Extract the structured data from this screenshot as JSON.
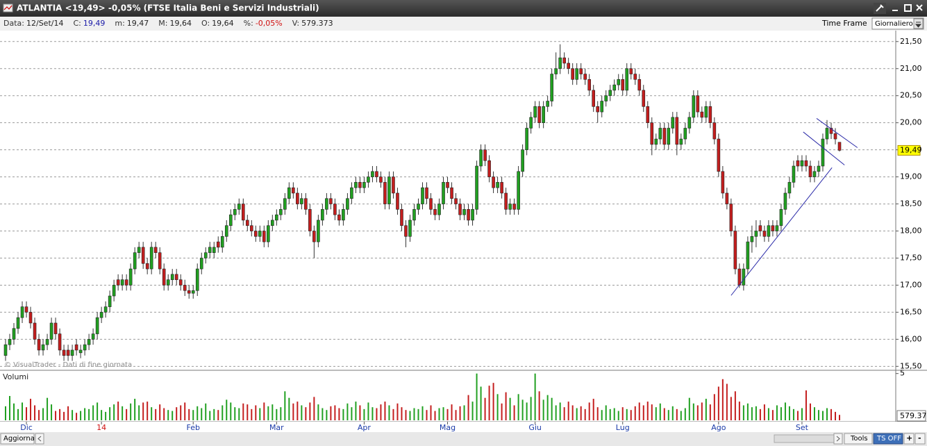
{
  "window": {
    "title": "ATLANTIA <19,49> -0,05%  (FTSE Italia Beni e Servizi Industriali)",
    "info": [
      {
        "label": "Data:",
        "value": "12/Set/14",
        "color": "#222222"
      },
      {
        "label": "C:",
        "value": "19,49",
        "color": "#1a1aa8"
      },
      {
        "label": "m:",
        "value": "19,47",
        "color": "#222222"
      },
      {
        "label": "M:",
        "value": "19,64",
        "color": "#222222"
      },
      {
        "label": "O:",
        "value": "19,64",
        "color": "#222222"
      },
      {
        "label": "%:",
        "value": "-0,05%",
        "color": "#d01010"
      },
      {
        "label": "V:",
        "value": "579.373",
        "color": "#222222"
      }
    ],
    "time_frame_label": "Time Frame",
    "time_frame": "Giornaliero",
    "buttons": {
      "refresh": "Aggiorna",
      "tools": "Tools",
      "ts": "TS OFF",
      "plus": "+",
      "minus": "-"
    }
  },
  "chart_data": {
    "type": "candlestick",
    "watermark": "© VisualTrader - Dati di fine giornata",
    "categories": [
      null,
      null,
      null,
      null,
      null,
      "Dic",
      null,
      null,
      null,
      null,
      null,
      null,
      null,
      null,
      null,
      null,
      null,
      null,
      null,
      null,
      null,
      null,
      null,
      "14",
      null,
      null,
      null,
      null,
      null,
      null,
      null,
      null,
      null,
      null,
      null,
      null,
      null,
      null,
      null,
      null,
      null,
      null,
      null,
      null,
      null,
      "Feb",
      null,
      null,
      null,
      null,
      null,
      null,
      null,
      null,
      null,
      null,
      null,
      null,
      null,
      null,
      null,
      null,
      null,
      null,
      null,
      "Mar",
      null,
      null,
      null,
      null,
      null,
      null,
      null,
      null,
      null,
      null,
      null,
      null,
      null,
      null,
      null,
      null,
      null,
      null,
      null,
      null,
      "Apr",
      null,
      null,
      null,
      null,
      null,
      null,
      null,
      null,
      null,
      null,
      null,
      null,
      null,
      null,
      null,
      null,
      null,
      null,
      null,
      "Mag",
      null,
      null,
      null,
      null,
      null,
      null,
      null,
      null,
      null,
      null,
      null,
      null,
      null,
      null,
      null,
      null,
      null,
      null,
      null,
      null,
      "Giu",
      null,
      null,
      null,
      null,
      null,
      null,
      null,
      null,
      null,
      null,
      null,
      null,
      null,
      null,
      null,
      null,
      null,
      null,
      null,
      null,
      "Lug",
      null,
      null,
      null,
      null,
      null,
      null,
      null,
      null,
      null,
      null,
      null,
      null,
      null,
      null,
      null,
      null,
      null,
      null,
      null,
      null,
      null,
      null,
      "Ago",
      null,
      null,
      null,
      null,
      null,
      null,
      null,
      null,
      null,
      null,
      null,
      null,
      null,
      null,
      null,
      null,
      null,
      null,
      null,
      "Set",
      null,
      null,
      null,
      null,
      null,
      null,
      null,
      null,
      null
    ],
    "open": [
      15.7,
      15.9,
      16.0,
      16.2,
      16.4,
      16.6,
      16.5,
      16.3,
      16.0,
      15.8,
      15.9,
      16.0,
      16.3,
      16.1,
      15.8,
      15.8,
      15.7,
      15.9,
      15.75,
      15.8,
      15.9,
      16.0,
      16.1,
      16.4,
      16.5,
      16.6,
      16.8,
      17.1,
      17.0,
      17.1,
      17.0,
      17.3,
      17.6,
      17.7,
      17.4,
      17.3,
      17.7,
      17.6,
      17.3,
      17.0,
      17.1,
      17.2,
      17.1,
      17.0,
      16.9,
      16.85,
      16.9,
      17.3,
      17.5,
      17.6,
      17.6,
      17.8,
      17.7,
      17.9,
      18.1,
      18.3,
      18.4,
      18.5,
      18.2,
      18.1,
      18.0,
      17.9,
      18.0,
      17.8,
      18.1,
      18.2,
      18.3,
      18.4,
      18.6,
      18.8,
      18.7,
      18.5,
      18.6,
      18.4,
      18.0,
      17.8,
      18.2,
      18.4,
      18.6,
      18.5,
      18.3,
      18.2,
      18.4,
      18.6,
      18.8,
      18.9,
      18.8,
      18.9,
      19.0,
      19.1,
      19.0,
      18.9,
      18.5,
      19.0,
      18.7,
      18.4,
      18.1,
      17.9,
      18.2,
      18.4,
      18.5,
      18.8,
      18.6,
      18.4,
      18.3,
      18.5,
      18.9,
      18.8,
      18.6,
      18.5,
      18.3,
      18.4,
      18.2,
      18.4,
      19.2,
      19.5,
      19.3,
      19.0,
      18.8,
      18.9,
      18.7,
      18.4,
      18.5,
      18.4,
      19.1,
      19.5,
      19.9,
      20.1,
      20.3,
      20.0,
      20.3,
      20.4,
      20.9,
      21.0,
      21.2,
      21.1,
      21.0,
      20.8,
      21.0,
      20.9,
      20.8,
      20.6,
      20.3,
      20.2,
      20.4,
      20.5,
      20.6,
      20.7,
      20.8,
      20.6,
      21.0,
      20.9,
      20.8,
      20.6,
      20.3,
      20.0,
      19.6,
      19.7,
      19.9,
      19.6,
      19.9,
      20.1,
      19.6,
      19.7,
      19.9,
      20.1,
      20.5,
      20.2,
      20.1,
      20.3,
      20.0,
      19.7,
      19.1,
      18.7,
      18.5,
      18.0,
      17.3,
      17.0,
      17.3,
      17.8,
      17.9,
      18.1,
      18.0,
      17.9,
      18.1,
      18.0,
      18.1,
      18.4,
      18.7,
      18.9,
      19.3,
      19.2,
      19.3,
      19.2,
      19.0,
      19.1,
      19.2,
      19.7,
      19.9,
      19.8,
      19.64
    ],
    "high": [
      16.0,
      16.1,
      16.3,
      16.5,
      16.7,
      16.7,
      16.6,
      16.4,
      16.1,
      16.0,
      16.1,
      16.4,
      16.4,
      16.2,
      15.9,
      15.9,
      15.9,
      16.0,
      15.9,
      16.0,
      16.1,
      16.2,
      16.5,
      16.6,
      16.7,
      16.9,
      17.1,
      17.2,
      17.2,
      17.2,
      17.4,
      17.7,
      17.8,
      17.8,
      17.5,
      17.8,
      17.8,
      17.7,
      17.4,
      17.2,
      17.3,
      17.3,
      17.2,
      17.1,
      17.0,
      17.0,
      17.4,
      17.6,
      17.7,
      17.8,
      17.8,
      17.9,
      18.0,
      18.2,
      18.4,
      18.5,
      18.6,
      18.6,
      18.3,
      18.2,
      18.1,
      18.1,
      18.1,
      18.2,
      18.3,
      18.4,
      18.5,
      18.7,
      18.9,
      18.9,
      18.8,
      18.7,
      18.7,
      18.5,
      18.1,
      18.3,
      18.5,
      18.7,
      18.7,
      18.6,
      18.4,
      18.5,
      18.7,
      18.9,
      19.0,
      19.0,
      19.0,
      19.1,
      19.2,
      19.2,
      19.1,
      19.0,
      19.1,
      19.1,
      18.8,
      18.5,
      18.2,
      18.3,
      18.5,
      18.6,
      18.9,
      18.9,
      18.7,
      18.5,
      18.6,
      19.0,
      19.0,
      18.9,
      18.7,
      18.6,
      18.5,
      18.5,
      18.5,
      19.3,
      19.6,
      19.6,
      19.4,
      19.1,
      19.0,
      19.0,
      18.8,
      18.6,
      18.6,
      19.2,
      19.6,
      20.0,
      20.2,
      20.4,
      20.4,
      20.4,
      20.5,
      21.0,
      21.3,
      21.45,
      21.3,
      21.2,
      21.1,
      21.1,
      21.1,
      21.0,
      20.9,
      20.7,
      20.4,
      20.5,
      20.6,
      20.7,
      20.8,
      20.9,
      20.9,
      21.1,
      21.1,
      21.0,
      20.9,
      20.7,
      20.4,
      20.1,
      19.8,
      20.0,
      20.0,
      20.0,
      20.2,
      20.2,
      19.8,
      20.0,
      20.2,
      20.6,
      20.6,
      20.3,
      20.4,
      20.4,
      20.1,
      19.8,
      19.2,
      18.8,
      18.6,
      18.1,
      17.4,
      17.4,
      17.9,
      18.1,
      18.2,
      18.2,
      18.1,
      18.2,
      18.2,
      18.2,
      18.5,
      18.8,
      19.0,
      19.3,
      19.4,
      19.4,
      19.4,
      19.3,
      19.2,
      19.3,
      19.8,
      20.05,
      20.0,
      19.9,
      19.64
    ],
    "low": [
      15.6,
      15.8,
      15.9,
      16.1,
      16.3,
      16.4,
      16.2,
      15.9,
      15.7,
      15.7,
      15.8,
      15.9,
      16.0,
      15.7,
      15.6,
      15.6,
      15.6,
      15.7,
      15.65,
      15.7,
      15.8,
      15.9,
      16.0,
      16.3,
      16.4,
      16.5,
      16.7,
      16.9,
      16.9,
      16.9,
      16.9,
      17.2,
      17.5,
      17.3,
      17.2,
      17.2,
      17.5,
      17.2,
      16.9,
      16.9,
      17.0,
      17.0,
      16.9,
      16.8,
      16.75,
      16.75,
      16.8,
      17.2,
      17.4,
      17.5,
      17.5,
      17.6,
      17.6,
      17.8,
      18.0,
      18.2,
      18.3,
      18.1,
      18.0,
      17.9,
      17.8,
      17.8,
      17.7,
      17.7,
      18.0,
      18.1,
      18.2,
      18.3,
      18.5,
      18.6,
      18.4,
      18.4,
      18.3,
      17.9,
      17.5,
      17.7,
      18.1,
      18.3,
      18.4,
      18.2,
      18.1,
      18.1,
      18.3,
      18.5,
      18.7,
      18.7,
      18.7,
      18.8,
      18.9,
      18.9,
      18.8,
      18.4,
      18.4,
      18.6,
      18.3,
      18.0,
      17.7,
      17.8,
      18.1,
      18.3,
      18.4,
      18.5,
      18.3,
      18.2,
      18.2,
      18.4,
      18.7,
      18.5,
      18.4,
      18.2,
      18.2,
      18.1,
      18.1,
      18.3,
      19.1,
      19.2,
      18.9,
      18.7,
      18.7,
      18.6,
      18.3,
      18.3,
      18.3,
      18.3,
      19.0,
      19.4,
      19.8,
      20.0,
      19.9,
      19.9,
      20.2,
      20.3,
      20.8,
      20.9,
      21.0,
      20.9,
      20.7,
      20.7,
      20.8,
      20.7,
      20.5,
      20.2,
      20.0,
      20.1,
      20.3,
      20.4,
      20.5,
      20.6,
      20.5,
      20.5,
      20.8,
      20.7,
      20.5,
      20.2,
      19.9,
      19.4,
      19.5,
      19.6,
      19.5,
      19.5,
      19.8,
      19.4,
      19.5,
      19.6,
      19.8,
      20.0,
      20.1,
      20.0,
      20.0,
      19.9,
      19.6,
      19.0,
      18.6,
      18.4,
      17.9,
      17.2,
      16.95,
      16.9,
      17.2,
      17.6,
      17.7,
      17.9,
      17.8,
      17.8,
      17.9,
      17.9,
      18.0,
      18.3,
      18.6,
      18.8,
      19.1,
      19.1,
      19.1,
      18.9,
      18.9,
      19.0,
      19.1,
      19.6,
      19.7,
      19.6,
      19.47
    ],
    "close": [
      15.9,
      16.0,
      16.2,
      16.4,
      16.6,
      16.5,
      16.3,
      16.0,
      15.8,
      15.9,
      16.0,
      16.3,
      16.1,
      15.8,
      15.7,
      15.7,
      15.8,
      15.8,
      15.8,
      15.9,
      16.0,
      16.1,
      16.4,
      16.5,
      16.6,
      16.8,
      17.0,
      17.0,
      17.1,
      17.0,
      17.3,
      17.6,
      17.7,
      17.4,
      17.3,
      17.7,
      17.6,
      17.3,
      17.0,
      17.1,
      17.2,
      17.1,
      17.0,
      16.9,
      16.85,
      16.9,
      17.3,
      17.5,
      17.6,
      17.7,
      17.7,
      17.7,
      17.9,
      18.1,
      18.3,
      18.4,
      18.5,
      18.2,
      18.1,
      18.0,
      17.9,
      18.0,
      17.8,
      18.1,
      18.2,
      18.3,
      18.4,
      18.6,
      18.8,
      18.7,
      18.5,
      18.6,
      18.4,
      18.0,
      17.8,
      18.2,
      18.4,
      18.6,
      18.5,
      18.3,
      18.2,
      18.4,
      18.6,
      18.8,
      18.9,
      18.8,
      18.9,
      19.0,
      19.1,
      19.0,
      18.9,
      18.5,
      19.0,
      18.7,
      18.4,
      18.1,
      17.9,
      18.2,
      18.4,
      18.5,
      18.8,
      18.6,
      18.4,
      18.3,
      18.5,
      18.9,
      18.8,
      18.6,
      18.5,
      18.3,
      18.4,
      18.2,
      18.4,
      19.2,
      19.5,
      19.3,
      19.0,
      18.8,
      18.9,
      18.7,
      18.4,
      18.5,
      18.4,
      19.1,
      19.5,
      19.9,
      20.1,
      20.3,
      20.0,
      20.3,
      20.4,
      20.9,
      21.0,
      21.2,
      21.1,
      21.0,
      20.8,
      21.0,
      20.9,
      20.8,
      20.6,
      20.3,
      20.2,
      20.4,
      20.5,
      20.6,
      20.7,
      20.8,
      20.6,
      21.0,
      20.9,
      20.8,
      20.6,
      20.3,
      20.0,
      19.6,
      19.7,
      19.9,
      19.6,
      19.9,
      20.1,
      19.6,
      19.7,
      19.9,
      20.1,
      20.5,
      20.2,
      20.1,
      20.3,
      20.0,
      19.7,
      19.1,
      18.7,
      18.5,
      18.0,
      17.3,
      17.0,
      17.3,
      17.8,
      17.9,
      18.0,
      18.0,
      17.9,
      18.1,
      18.0,
      18.1,
      18.4,
      18.7,
      18.9,
      19.2,
      19.2,
      19.3,
      19.2,
      19.0,
      19.1,
      19.2,
      19.7,
      19.9,
      19.8,
      19.7,
      19.49
    ],
    "colors": {
      "up": "#21a021",
      "down": "#c41e1e"
    },
    "ylim": [
      15.44,
      21.69
    ],
    "yticks": [
      {
        "value": 15.5,
        "label": "15,50"
      },
      {
        "value": 16,
        "label": "16,00"
      },
      {
        "value": 16.5,
        "label": "16,50"
      },
      {
        "value": 17,
        "label": "17,00"
      },
      {
        "value": 17.5,
        "label": "17,50"
      },
      {
        "value": 18,
        "label": "18,00"
      },
      {
        "value": 18.5,
        "label": "18,50"
      },
      {
        "value": 19,
        "label": "19,00"
      },
      {
        "value": 19.5,
        "label": "19,50"
      },
      {
        "value": 20,
        "label": "20,00"
      },
      {
        "value": 20.5,
        "label": "20,50"
      },
      {
        "value": 21,
        "label": "21,00"
      },
      {
        "value": 21.5,
        "label": "21,50"
      }
    ],
    "grid": true,
    "last_price": {
      "value": 19.49,
      "label": "19,49"
    },
    "trendline_color": "#2a2aa8",
    "trendlines": [
      {
        "x": [
          174,
          198.2
        ],
        "y": [
          16.81,
          19.17
        ]
      },
      {
        "x": [
          191.3,
          201.2
        ],
        "y": [
          19.83,
          19.22
        ]
      },
      {
        "x": [
          194.5,
          204.3
        ],
        "y": [
          20.08,
          19.54
        ]
      }
    ],
    "volume": {
      "title": "Volumi",
      "ylim": [
        0,
        5.2
      ],
      "yticks": [
        5
      ],
      "last_label": "579.37",
      "values": [
        1.5,
        2.6,
        1.8,
        1.2,
        1.9,
        1.4,
        2.3,
        1.6,
        1.1,
        1.3,
        2.4,
        1.7,
        1.0,
        1.2,
        0.9,
        1.5,
        1.1,
        0.8,
        1.0,
        1.3,
        1.2,
        1.6,
        1.9,
        1.1,
        0.9,
        1.4,
        1.7,
        2.0,
        1.5,
        1.2,
        1.8,
        2.3,
        1.6,
        1.9,
        2.0,
        1.4,
        1.2,
        1.7,
        1.3,
        1.1,
        1.0,
        1.4,
        1.6,
        1.9,
        1.2,
        1.1,
        1.5,
        1.3,
        1.8,
        1.0,
        1.2,
        1.1,
        1.6,
        2.2,
        1.9,
        1.4,
        1.3,
        1.8,
        1.7,
        1.2,
        1.6,
        1.3,
        1.9,
        1.5,
        1.7,
        1.2,
        1.4,
        3.1,
        2.4,
        1.8,
        2.0,
        1.6,
        1.4,
        1.9,
        2.5,
        1.7,
        1.3,
        1.1,
        1.5,
        1.6,
        1.3,
        1.2,
        1.8,
        1.4,
        2.0,
        1.6,
        1.2,
        1.9,
        1.4,
        1.3,
        1.7,
        2.0,
        1.6,
        1.2,
        1.8,
        1.4,
        1.1,
        1.0,
        1.3,
        1.2,
        1.5,
        1.1,
        1.6,
        1.0,
        1.3,
        1.4,
        1.2,
        1.7,
        1.1,
        1.5,
        1.6,
        2.7,
        2.0,
        5.0,
        3.6,
        2.4,
        3.7,
        4.0,
        2.8,
        1.8,
        3.0,
        2.4,
        1.6,
        2.8,
        2.2,
        1.9,
        2.5,
        5.0,
        3.1,
        2.2,
        2.7,
        2.4,
        1.6,
        1.9,
        1.4,
        2.0,
        1.6,
        1.3,
        1.5,
        1.2,
        1.9,
        2.3,
        1.4,
        1.1,
        1.6,
        1.2,
        1.3,
        1.0,
        1.4,
        1.2,
        1.1,
        1.5,
        1.9,
        1.6,
        2.0,
        1.7,
        1.4,
        1.8,
        1.3,
        1.1,
        1.5,
        1.2,
        1.0,
        1.3,
        2.4,
        1.8,
        1.6,
        1.9,
        2.3,
        1.7,
        2.8,
        3.6,
        4.4,
        3.9,
        2.5,
        3.1,
        2.0,
        1.6,
        1.8,
        1.4,
        1.5,
        1.2,
        1.7,
        1.3,
        1.1,
        1.6,
        1.4,
        1.9,
        1.5,
        1.2,
        1.0,
        1.3,
        3.2,
        1.8,
        1.4,
        1.1,
        1.0,
        1.3,
        1.2,
        0.9,
        0.579373
      ]
    }
  }
}
